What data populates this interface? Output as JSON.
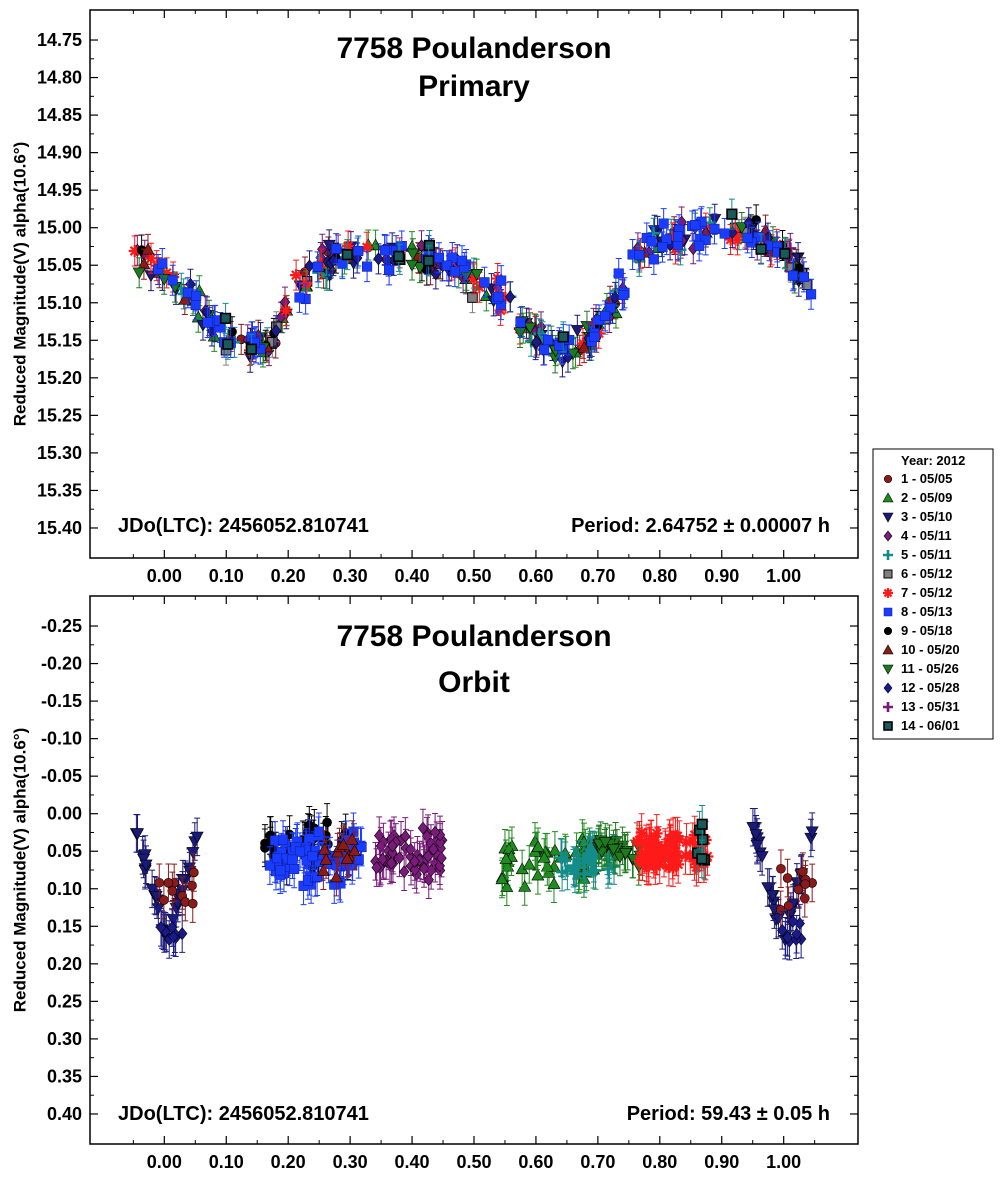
{
  "legend": {
    "title": "Year: 2012",
    "entries": [
      {
        "label": "1 - 05/05",
        "color": "#8b1a1a",
        "marker": "circle"
      },
      {
        "label": "2 - 05/09",
        "color": "#1e8c1e",
        "marker": "triangle-up"
      },
      {
        "label": "3 - 05/10",
        "color": "#1a1a7a",
        "marker": "triangle-down"
      },
      {
        "label": "4 - 05/11",
        "color": "#7a1a7a",
        "marker": "diamond"
      },
      {
        "label": "5 - 05/11",
        "color": "#148c8c",
        "marker": "plus"
      },
      {
        "label": "6 - 05/12",
        "color": "#808080",
        "marker": "square-outline"
      },
      {
        "label": "7 - 05/12",
        "color": "#ff1a1a",
        "marker": "asterisk"
      },
      {
        "label": "8 - 05/13",
        "color": "#1a3cff",
        "marker": "square"
      },
      {
        "label": "9 - 05/18",
        "color": "#000000",
        "marker": "hexagon"
      },
      {
        "label": "10 - 05/20",
        "color": "#8b1a1a",
        "marker": "triangle-up"
      },
      {
        "label": "11 - 05/26",
        "color": "#1e7a1e",
        "marker": "triangle-down"
      },
      {
        "label": "12 - 05/28",
        "color": "#1a1a8c",
        "marker": "diamond"
      },
      {
        "label": "13 - 05/31",
        "color": "#7a1a7a",
        "marker": "plus"
      },
      {
        "label": "14 - 06/01",
        "color": "#148c8c",
        "marker": "square-dark"
      }
    ]
  },
  "chart_data": [
    {
      "type": "scatter",
      "title": "7758 Poulanderson",
      "subtitle": "Primary",
      "xlabel": "",
      "ylabel": "Reduced Magnitude(V) alpha(10.6°)",
      "xlim": [
        -0.12,
        1.12
      ],
      "ylim": [
        15.44,
        14.71
      ],
      "y_inverted": true,
      "x_ticks": [
        "0.00",
        "0.10",
        "0.20",
        "0.30",
        "0.40",
        "0.50",
        "0.60",
        "0.70",
        "0.80",
        "0.90",
        "1.00"
      ],
      "x_tick_values": [
        0,
        0.1,
        0.2,
        0.3,
        0.4,
        0.5,
        0.6,
        0.7,
        0.8,
        0.9,
        1.0
      ],
      "y_ticks": [
        "14.75",
        "14.80",
        "14.85",
        "14.90",
        "14.95",
        "15.00",
        "15.05",
        "15.10",
        "15.15",
        "15.20",
        "15.25",
        "15.30",
        "15.35",
        "15.40"
      ],
      "y_tick_values": [
        14.75,
        14.8,
        14.85,
        14.9,
        14.95,
        15.0,
        15.05,
        15.1,
        15.15,
        15.2,
        15.25,
        15.3,
        15.35,
        15.4
      ],
      "annotation_left": "JDo(LTC): 2456052.810741",
      "annotation_right": "Period: 2.64752 ± 0.00007 h",
      "model": {
        "x": [
          -0.05,
          0.0,
          0.05,
          0.08,
          0.11,
          0.14,
          0.17,
          0.2,
          0.25,
          0.3,
          0.35,
          0.4,
          0.45,
          0.5,
          0.55,
          0.58,
          0.62,
          0.66,
          0.7,
          0.73,
          0.76,
          0.8,
          0.85,
          0.9,
          0.95,
          1.0,
          1.05
        ],
        "y": [
          15.04,
          15.06,
          15.1,
          15.13,
          15.15,
          15.16,
          15.15,
          15.1,
          15.05,
          15.03,
          15.035,
          15.04,
          15.05,
          15.07,
          15.1,
          15.13,
          15.155,
          15.16,
          15.14,
          15.09,
          15.04,
          15.02,
          15.01,
          15.0,
          15.01,
          15.03,
          15.08
        ]
      },
      "point_counts": [
        18,
        30,
        42,
        36,
        20,
        16,
        34,
        90,
        14,
        14,
        24,
        30,
        6,
        12
      ],
      "noise": 0.03,
      "errorbar": 0.02
    },
    {
      "type": "scatter",
      "title": "7758 Poulanderson",
      "subtitle": "Orbit",
      "xlabel": "",
      "ylabel": "Reduced Magnitude(V) alpha(10.6°)",
      "xlim": [
        -0.12,
        1.12
      ],
      "ylim": [
        0.44,
        -0.29
      ],
      "y_inverted": true,
      "x_ticks": [
        "0.00",
        "0.10",
        "0.20",
        "0.30",
        "0.40",
        "0.50",
        "0.60",
        "0.70",
        "0.80",
        "0.90",
        "1.00"
      ],
      "x_tick_values": [
        0,
        0.1,
        0.2,
        0.3,
        0.4,
        0.5,
        0.6,
        0.7,
        0.8,
        0.9,
        1.0
      ],
      "y_ticks": [
        "-0.25",
        "-0.20",
        "-0.15",
        "-0.10",
        "-0.05",
        "0.00",
        "0.05",
        "0.10",
        "0.15",
        "0.20",
        "0.25",
        "0.30",
        "0.35",
        "0.40"
      ],
      "y_tick_values": [
        -0.25,
        -0.2,
        -0.15,
        -0.1,
        -0.05,
        0.0,
        0.05,
        0.1,
        0.15,
        0.2,
        0.25,
        0.3,
        0.35,
        0.4
      ],
      "annotation_left": "JDo(LTC): 2456052.810741",
      "annotation_right": "Period: 59.43 ± 0.05 h",
      "groups": [
        {
          "series": 3,
          "x": [
            -0.05,
            0.06
          ],
          "y_center": 0.06,
          "spread": 0.11,
          "n": 30,
          "shape": "v"
        },
        {
          "series": 1,
          "x": [
            -0.01,
            0.05
          ],
          "y_center": 0.1,
          "spread": 0.05,
          "n": 10
        },
        {
          "series": 12,
          "x": [
            -0.01,
            0.03
          ],
          "y_center": 0.16,
          "spread": 0.03,
          "n": 8
        },
        {
          "series": 9,
          "x": [
            0.16,
            0.3
          ],
          "y_center": 0.04,
          "spread": 0.04,
          "n": 40
        },
        {
          "series": 8,
          "x": [
            0.17,
            0.32
          ],
          "y_center": 0.06,
          "spread": 0.05,
          "n": 70
        },
        {
          "series": 10,
          "x": [
            0.25,
            0.31
          ],
          "y_center": 0.05,
          "spread": 0.04,
          "n": 12
        },
        {
          "series": 4,
          "x": [
            0.34,
            0.45
          ],
          "y_center": 0.05,
          "spread": 0.05,
          "n": 60
        },
        {
          "series": 2,
          "x": [
            0.54,
            0.7
          ],
          "y_center": 0.06,
          "spread": 0.05,
          "n": 50
        },
        {
          "series": 5,
          "x": [
            0.64,
            0.73
          ],
          "y_center": 0.06,
          "spread": 0.03,
          "n": 35
        },
        {
          "series": 11,
          "x": [
            0.7,
            0.77
          ],
          "y_center": 0.05,
          "spread": 0.03,
          "n": 25
        },
        {
          "series": 7,
          "x": [
            0.76,
            0.88
          ],
          "y_center": 0.05,
          "spread": 0.04,
          "n": 70
        },
        {
          "series": 14,
          "x": [
            0.86,
            0.88
          ],
          "y_center": 0.05,
          "spread": 0.08,
          "n": 6
        },
        {
          "series": 3,
          "x": [
            0.95,
            1.05
          ],
          "y_center": 0.06,
          "spread": 0.11,
          "n": 30,
          "shape": "v"
        },
        {
          "series": 1,
          "x": [
            0.99,
            1.05
          ],
          "y_center": 0.1,
          "spread": 0.05,
          "n": 10
        },
        {
          "series": 12,
          "x": [
            0.99,
            1.03
          ],
          "y_center": 0.16,
          "spread": 0.03,
          "n": 8
        }
      ],
      "errorbar": 0.025
    }
  ]
}
